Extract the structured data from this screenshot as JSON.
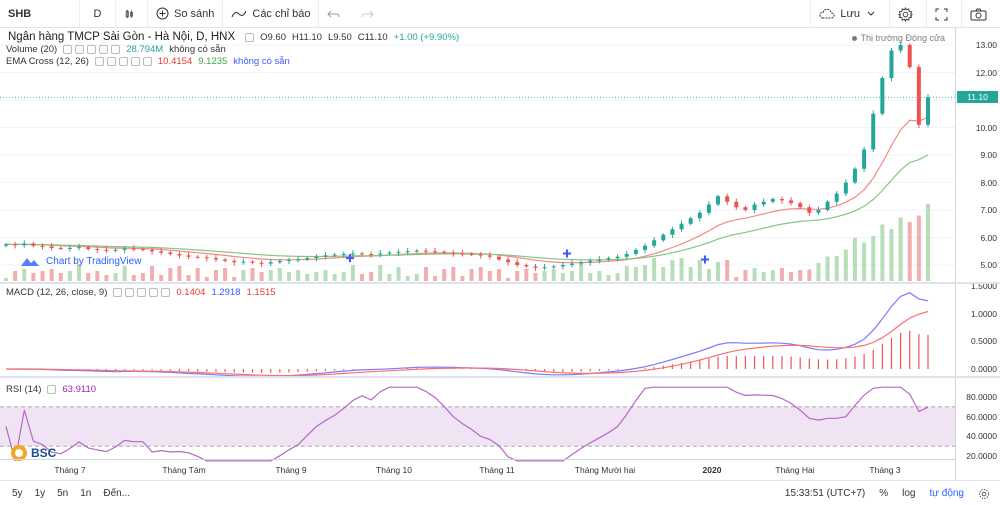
{
  "toolbar": {
    "symbol": "SHB",
    "interval": "D",
    "compare_label": "So sánh",
    "indicators_label": "Các chỉ báo",
    "save_label": "Lưu"
  },
  "header": {
    "title": "Ngân hàng TMCP Sài Gòn - Hà Nội, D, HNX",
    "o": "O9.60",
    "h": "H11.10",
    "l": "L9.50",
    "c": "C11.10",
    "change": "+1.00 (+9.90%)",
    "market_status": "Thị trường Đóng cửa"
  },
  "volume_legend": {
    "label": "Volume (20)",
    "value": "28.794M",
    "ma_value": "không có sẵn"
  },
  "ema_legend": {
    "label": "EMA Cross (12, 26)",
    "v1": "10.4154",
    "v2": "9.1235",
    "v3": "không có sẵn"
  },
  "macd_legend": {
    "label": "MACD (12, 26, close, 9)",
    "v1": "0.1404",
    "v2": "1.2918",
    "v3": "1.1515"
  },
  "rsi_legend": {
    "label": "RSI (14)",
    "value": "63.9110"
  },
  "watermark": "Chart by TradingView",
  "logo": "BSC",
  "price_axis": [
    "13.00",
    "12.00",
    "11.00",
    "10.00",
    "9.00",
    "8.00",
    "7.00",
    "6.00",
    "5.00"
  ],
  "last_price_tag": "11.10",
  "macd_axis": [
    "1.5000",
    "1.0000",
    "0.5000",
    "0.0000"
  ],
  "rsi_axis": [
    "80.0000",
    "60.0000",
    "40.0000",
    "20.0000"
  ],
  "time_axis": [
    "Tháng 7",
    "Tháng Tám",
    "Tháng 9",
    "Tháng 10",
    "Tháng 11",
    "Tháng Mười hai",
    "2020",
    "Tháng Hai",
    "Tháng 3"
  ],
  "bottom": {
    "ranges": [
      "5y",
      "1y",
      "5n",
      "1n",
      "Đến..."
    ],
    "time": "15:33:51 (UTC+7)",
    "percent": "%",
    "log": "log",
    "auto": "tự động"
  },
  "colors": {
    "up": "#26a69a",
    "down": "#ef5350",
    "ema_fast": "#f28b82",
    "ema_slow": "#81c784",
    "macd": "#6b6bff",
    "signal": "#ff5252",
    "rsi": "#b667c6"
  },
  "chart_data": {
    "type": "candlestick",
    "price_series": [
      5.75,
      5.72,
      5.78,
      5.7,
      5.68,
      5.62,
      5.6,
      5.62,
      5.65,
      5.58,
      5.55,
      5.52,
      5.55,
      5.6,
      5.58,
      5.55,
      5.5,
      5.45,
      5.4,
      5.35,
      5.3,
      5.28,
      5.25,
      5.2,
      5.15,
      5.1,
      5.12,
      5.08,
      5.05,
      5.1,
      5.15,
      5.18,
      5.2,
      5.25,
      5.3,
      5.35,
      5.38,
      5.4,
      5.42,
      5.4,
      5.38,
      5.42,
      5.45,
      5.48,
      5.5,
      5.52,
      5.5,
      5.48,
      5.45,
      5.42,
      5.4,
      5.38,
      5.35,
      5.3,
      5.2,
      5.1,
      5.0,
      4.95,
      4.9,
      4.92,
      4.95,
      5.0,
      5.05,
      5.1,
      5.15,
      5.2,
      5.25,
      5.3,
      5.4,
      5.55,
      5.7,
      5.9,
      6.1,
      6.3,
      6.5,
      6.7,
      6.9,
      7.2,
      7.5,
      7.3,
      7.1,
      7.0,
      7.2,
      7.3,
      7.4,
      7.35,
      7.25,
      7.1,
      6.9,
      7.0,
      7.3,
      7.6,
      8.0,
      8.5,
      9.2,
      10.5,
      11.8,
      12.8,
      13.0,
      12.2,
      10.1,
      11.1
    ],
    "macd_axis_range": [
      -0.2,
      1.6
    ],
    "rsi_axis_range": [
      10,
      100
    ],
    "rsi_bands": [
      30,
      70
    ]
  }
}
